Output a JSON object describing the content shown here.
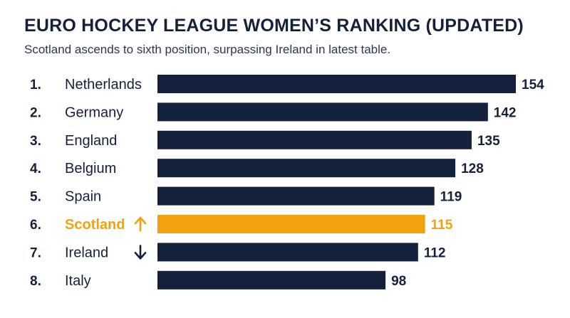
{
  "title": "EURO HOCKEY LEAGUE WOMEN’S RANKING (UPDATED)",
  "subtitle": "Scotland ascends to sixth position, surpassing Ireland in latest table.",
  "colors": {
    "bar": "#14213d",
    "highlight": "#f2a20c",
    "text": "#14213d"
  },
  "chart_data": {
    "type": "bar",
    "orientation": "horizontal",
    "title": "EURO HOCKEY LEAGUE WOMEN’S RANKING (UPDATED)",
    "subtitle": "Scotland ascends to sixth position, surpassing Ireland in latest table.",
    "xlabel": "",
    "ylabel": "",
    "xlim": [
      0,
      154
    ],
    "grid": false,
    "legend": "none",
    "ranks": [
      "1.",
      "2.",
      "3.",
      "4.",
      "5.",
      "6.",
      "7.",
      "8."
    ],
    "categories": [
      "Netherlands",
      "Germany",
      "England",
      "Belgium",
      "Spain",
      "Scotland",
      "Ireland",
      "Italy"
    ],
    "values": [
      154,
      142,
      135,
      128,
      119,
      115,
      112,
      98
    ],
    "value_labels": [
      "154",
      "142",
      "135",
      "128",
      "119",
      "115",
      "112",
      "98"
    ],
    "highlight": [
      "Scotland"
    ],
    "movement_icons": [
      null,
      null,
      null,
      null,
      null,
      "arrow-up-icon",
      "arrow-down-icon",
      null
    ]
  }
}
